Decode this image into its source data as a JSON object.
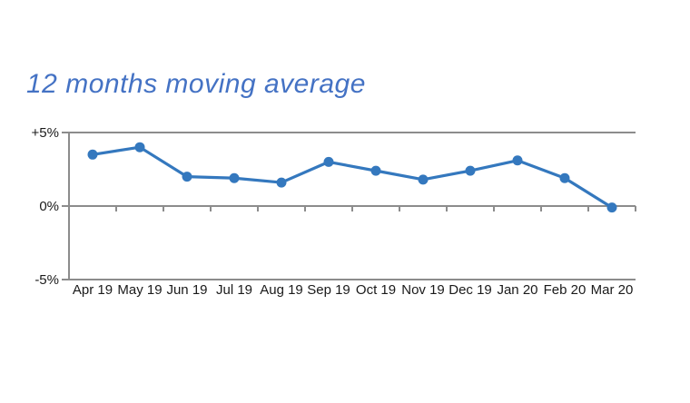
{
  "title": {
    "text": "12 months moving average",
    "color": "#4472C4"
  },
  "chart_data": {
    "type": "line",
    "title": "12 months moving average",
    "categories": [
      "Apr 19",
      "May 19",
      "Jun 19",
      "Jul 19",
      "Aug 19",
      "Sep 19",
      "Oct 19",
      "Nov 19",
      "Dec 19",
      "Jan 20",
      "Feb 20",
      "Mar 20"
    ],
    "series": [
      {
        "name": "12 months moving average",
        "values": [
          3.5,
          4.0,
          2.0,
          1.9,
          1.6,
          3.0,
          2.4,
          1.8,
          2.4,
          3.1,
          1.9,
          -0.1
        ]
      }
    ],
    "xlabel": "",
    "ylabel": "",
    "ylim": [
      -5,
      5
    ],
    "yticks": [
      {
        "label": "+5%",
        "value": 5
      },
      {
        "label": "0%",
        "value": 0
      },
      {
        "label": "-5%",
        "value": -5
      }
    ],
    "grid": "horizontal gridlines at +5%, 0%, -5%; category ticks on the 0% axis",
    "legend": "none",
    "colors": {
      "line": "#3478BE",
      "marker": "#3478BE",
      "axis": "#8C8C8C",
      "tick_label": "#1a1a1a"
    }
  }
}
